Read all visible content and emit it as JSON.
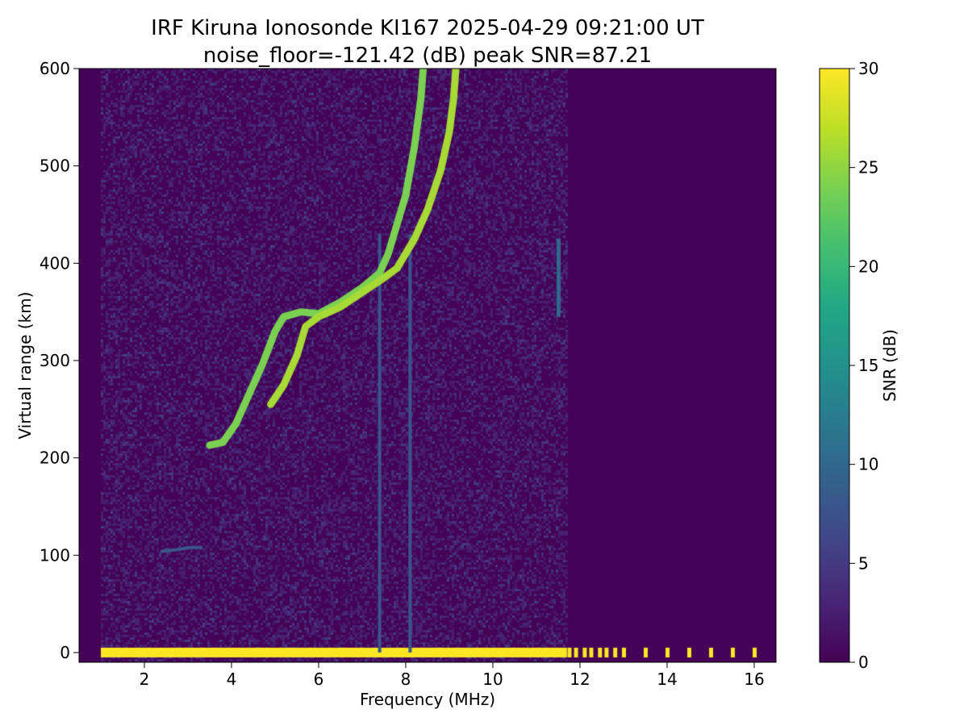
{
  "chart_data": {
    "type": "heatmap",
    "title": "IRF Kiruna Ionosonde KI167 2025-04-29 09:21:00  UT",
    "subtitle": "noise_floor=-121.42 (dB) peak SNR=87.21",
    "xlabel": "Frequency (MHz)",
    "ylabel": "Virtual range (km)",
    "xlim": [
      0.5,
      16.5
    ],
    "ylim": [
      -10,
      600
    ],
    "x_ticks": [
      2,
      4,
      6,
      8,
      10,
      12,
      14,
      16
    ],
    "y_ticks": [
      0,
      100,
      200,
      300,
      400,
      500,
      600
    ],
    "x_tick_labels": [
      "2",
      "4",
      "6",
      "8",
      "10",
      "12",
      "14",
      "16"
    ],
    "y_tick_labels": [
      "0",
      "100",
      "200",
      "300",
      "400",
      "500",
      "600"
    ],
    "colorbar": {
      "label": "SNR (dB)",
      "range": [
        0,
        30
      ],
      "ticks": [
        0,
        5,
        10,
        15,
        20,
        25,
        30
      ],
      "tick_labels": [
        "0",
        "5",
        "10",
        "15",
        "20",
        "25",
        "30"
      ],
      "colormap": "viridis"
    },
    "freq_range_swept": [
      1.0,
      16.0
    ],
    "features": [
      {
        "label": "ground clutter band",
        "freq": [
          1.0,
          11.7
        ],
        "range_km": [
          -5,
          5
        ],
        "snr_db": 30
      },
      {
        "label": "discrete frequency returns",
        "freqs": [
          11.75,
          11.9,
          12.1,
          12.25,
          12.45,
          12.6,
          12.8,
          13.0,
          13.5,
          14.0,
          14.5,
          15.0,
          15.5,
          16.0
        ],
        "range_km": [
          -5,
          5
        ],
        "snr_db": 30
      },
      {
        "label": "E-layer trace",
        "points": [
          [
            2.4,
            104
          ],
          [
            2.8,
            106
          ],
          [
            3.0,
            108
          ],
          [
            3.3,
            108
          ]
        ],
        "snr_db": 8
      },
      {
        "label": "F-layer O-mode trace",
        "points": [
          [
            3.5,
            213
          ],
          [
            3.8,
            216
          ],
          [
            4.1,
            235
          ],
          [
            4.4,
            265
          ],
          [
            4.7,
            295
          ],
          [
            5.0,
            330
          ],
          [
            5.2,
            345
          ],
          [
            5.6,
            350
          ],
          [
            6.0,
            348
          ],
          [
            6.5,
            360
          ],
          [
            7.0,
            375
          ],
          [
            7.4,
            390
          ],
          [
            7.6,
            410
          ],
          [
            7.8,
            440
          ],
          [
            8.0,
            470
          ],
          [
            8.2,
            520
          ],
          [
            8.35,
            570
          ],
          [
            8.4,
            600
          ]
        ],
        "snr_db": 24
      },
      {
        "label": "F-layer X-mode trace",
        "points": [
          [
            4.9,
            255
          ],
          [
            5.2,
            275
          ],
          [
            5.5,
            305
          ],
          [
            5.7,
            335
          ],
          [
            6.0,
            345
          ],
          [
            6.5,
            355
          ],
          [
            7.0,
            370
          ],
          [
            7.5,
            385
          ],
          [
            7.8,
            395
          ],
          [
            8.2,
            425
          ],
          [
            8.5,
            455
          ],
          [
            8.8,
            495
          ],
          [
            9.0,
            535
          ],
          [
            9.1,
            570
          ],
          [
            9.15,
            600
          ]
        ],
        "snr_db": 26
      },
      {
        "label": "interference streaks",
        "freqs": [
          7.4,
          8.1
        ],
        "range_km": [
          0,
          430
        ],
        "snr_db": 8
      },
      {
        "label": "spread echo",
        "freq": 11.5,
        "range_km": [
          345,
          425
        ],
        "snr_db": 10
      }
    ]
  }
}
